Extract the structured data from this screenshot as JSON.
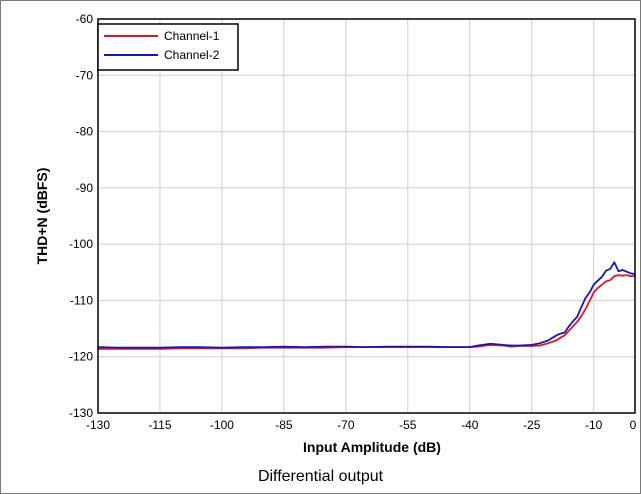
{
  "caption": "Differential output",
  "chart_data": {
    "type": "line",
    "xlabel": "Input Amplitude (dB)",
    "ylabel": "THD+N (dBFS)",
    "xlim": [
      -130,
      0
    ],
    "ylim": [
      -130,
      -60
    ],
    "x_ticks": [
      -130,
      -115,
      -100,
      -85,
      -70,
      -55,
      -40,
      -25,
      -10,
      0
    ],
    "y_ticks": [
      -60,
      -70,
      -80,
      -90,
      -100,
      -110,
      -120,
      -130
    ],
    "grid": true,
    "legend_position": "top-left",
    "series": [
      {
        "name": "Channel-1",
        "color": "#e8141b",
        "points": [
          [
            -130,
            -118.6
          ],
          [
            -125,
            -118.6
          ],
          [
            -120,
            -118.6
          ],
          [
            -115,
            -118.6
          ],
          [
            -110,
            -118.5
          ],
          [
            -105,
            -118.5
          ],
          [
            -100,
            -118.5
          ],
          [
            -95,
            -118.5
          ],
          [
            -90,
            -118.4
          ],
          [
            -85,
            -118.4
          ],
          [
            -80,
            -118.4
          ],
          [
            -75,
            -118.4
          ],
          [
            -70,
            -118.3
          ],
          [
            -65,
            -118.3
          ],
          [
            -60,
            -118.3
          ],
          [
            -55,
            -118.3
          ],
          [
            -50,
            -118.3
          ],
          [
            -45,
            -118.3
          ],
          [
            -40,
            -118.3
          ],
          [
            -38,
            -118.2
          ],
          [
            -35,
            -117.9
          ],
          [
            -32,
            -118.0
          ],
          [
            -30,
            -118.2
          ],
          [
            -28,
            -118.1
          ],
          [
            -25,
            -118.1
          ],
          [
            -23,
            -118.0
          ],
          [
            -21,
            -117.6
          ],
          [
            -19,
            -117.1
          ],
          [
            -18,
            -116.6
          ],
          [
            -17,
            -116.2
          ],
          [
            -16,
            -115.4
          ],
          [
            -15,
            -114.6
          ],
          [
            -14,
            -113.8
          ],
          [
            -13,
            -112.8
          ],
          [
            -12,
            -111.6
          ],
          [
            -11,
            -110.1
          ],
          [
            -10,
            -108.6
          ],
          [
            -9,
            -107.8
          ],
          [
            -8,
            -107.2
          ],
          [
            -7,
            -106.6
          ],
          [
            -6,
            -106.4
          ],
          [
            -5,
            -105.7
          ],
          [
            -4,
            -105.5
          ],
          [
            -3,
            -105.6
          ],
          [
            -2,
            -105.5
          ],
          [
            -1,
            -105.7
          ],
          [
            0,
            -105.6
          ]
        ]
      },
      {
        "name": "Channel-2",
        "color": "#1216c8",
        "points": [
          [
            -130,
            -118.3
          ],
          [
            -125,
            -118.4
          ],
          [
            -120,
            -118.4
          ],
          [
            -115,
            -118.4
          ],
          [
            -110,
            -118.3
          ],
          [
            -105,
            -118.3
          ],
          [
            -100,
            -118.4
          ],
          [
            -95,
            -118.3
          ],
          [
            -90,
            -118.3
          ],
          [
            -85,
            -118.2
          ],
          [
            -80,
            -118.3
          ],
          [
            -75,
            -118.2
          ],
          [
            -70,
            -118.2
          ],
          [
            -65,
            -118.3
          ],
          [
            -60,
            -118.2
          ],
          [
            -55,
            -118.2
          ],
          [
            -50,
            -118.2
          ],
          [
            -45,
            -118.3
          ],
          [
            -40,
            -118.3
          ],
          [
            -38,
            -118.0
          ],
          [
            -35,
            -117.7
          ],
          [
            -32,
            -117.9
          ],
          [
            -30,
            -118.0
          ],
          [
            -28,
            -118.0
          ],
          [
            -25,
            -117.9
          ],
          [
            -23,
            -117.6
          ],
          [
            -21,
            -117.1
          ],
          [
            -19,
            -116.2
          ],
          [
            -18,
            -115.9
          ],
          [
            -17,
            -115.7
          ],
          [
            -16,
            -114.6
          ],
          [
            -15,
            -113.7
          ],
          [
            -14,
            -112.9
          ],
          [
            -13,
            -111.2
          ],
          [
            -12,
            -109.6
          ],
          [
            -11,
            -108.6
          ],
          [
            -10,
            -107.2
          ],
          [
            -9,
            -106.5
          ],
          [
            -8,
            -105.8
          ],
          [
            -7,
            -104.7
          ],
          [
            -6,
            -104.4
          ],
          [
            -5,
            -103.2
          ],
          [
            -4,
            -104.8
          ],
          [
            -3,
            -104.6
          ],
          [
            -2,
            -104.9
          ],
          [
            -1,
            -105.2
          ],
          [
            0,
            -105.3
          ]
        ]
      }
    ]
  }
}
